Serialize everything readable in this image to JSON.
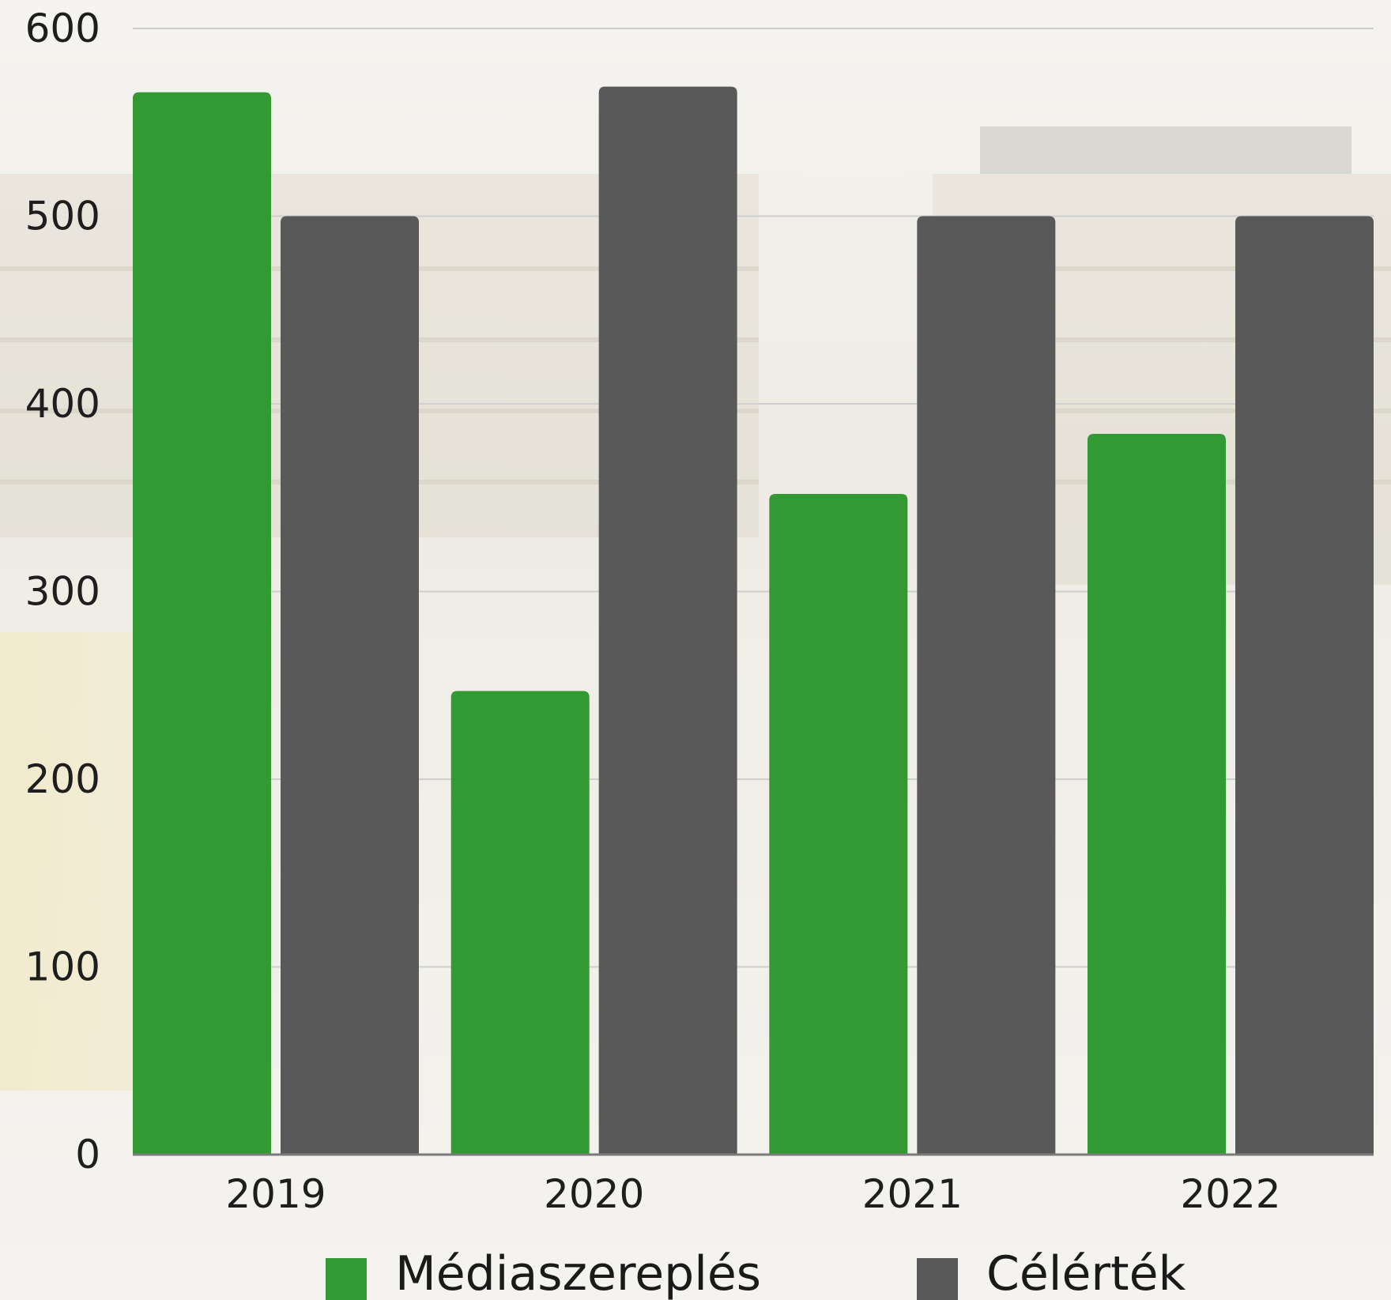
{
  "chart_data": {
    "type": "bar",
    "categories": [
      "2019",
      "2020",
      "2021",
      "2022"
    ],
    "series": [
      {
        "name": "Médiaszereplés",
        "color": "#339933",
        "values": [
          566,
          247,
          352,
          384
        ]
      },
      {
        "name": "Célérték",
        "color": "#595959",
        "values": [
          500,
          569,
          500,
          500
        ]
      }
    ],
    "yticks": [
      "0",
      "100",
      "200",
      "300",
      "400",
      "500",
      "600"
    ],
    "ylim": [
      0,
      600
    ],
    "title": "",
    "xlabel": "",
    "ylabel": "",
    "grid": true,
    "legend_position": "bottom"
  }
}
